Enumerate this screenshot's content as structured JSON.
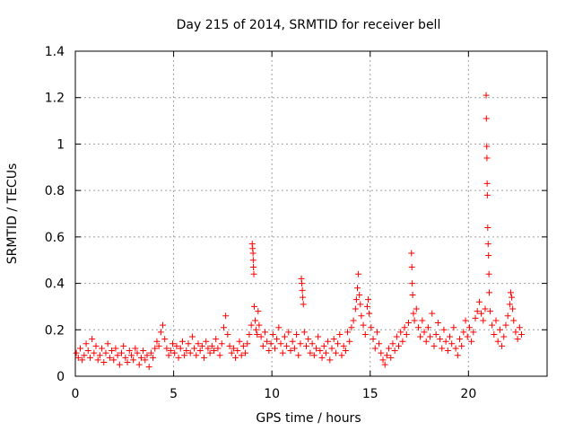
{
  "chart_data": {
    "type": "scatter",
    "title": "Day 215 of 2014, SRMTID for receiver bell",
    "xlabel": "GPS time / hours",
    "ylabel": "SRMTID / TECUs",
    "xlim": [
      0,
      24
    ],
    "ylim": [
      0,
      1.4
    ],
    "xticks": [
      0,
      5,
      10,
      15,
      20
    ],
    "xtick_labels": [
      "0",
      "5",
      "10",
      "15",
      "20"
    ],
    "yticks": [
      0,
      0.2,
      0.4,
      0.6,
      0.8,
      1.0,
      1.2,
      1.4
    ],
    "ytick_labels": [
      "0",
      "0.2",
      "0.4",
      "0.6",
      "0.8",
      "1",
      "1.2",
      "1.4"
    ],
    "grid": true,
    "marker": "+",
    "color": "#ff0000",
    "series": [
      {
        "name": "SRMTID",
        "points": [
          [
            0.05,
            0.1
          ],
          [
            0.15,
            0.08
          ],
          [
            0.25,
            0.12
          ],
          [
            0.35,
            0.07
          ],
          [
            0.45,
            0.09
          ],
          [
            0.55,
            0.14
          ],
          [
            0.65,
            0.11
          ],
          [
            0.75,
            0.08
          ],
          [
            0.85,
            0.16
          ],
          [
            0.95,
            0.1
          ],
          [
            1.05,
            0.13
          ],
          [
            1.15,
            0.07
          ],
          [
            1.25,
            0.09
          ],
          [
            1.35,
            0.12
          ],
          [
            1.45,
            0.06
          ],
          [
            1.55,
            0.1
          ],
          [
            1.65,
            0.14
          ],
          [
            1.75,
            0.08
          ],
          [
            1.85,
            0.11
          ],
          [
            1.95,
            0.07
          ],
          [
            2.05,
            0.12
          ],
          [
            2.15,
            0.09
          ],
          [
            2.25,
            0.05
          ],
          [
            2.35,
            0.1
          ],
          [
            2.45,
            0.13
          ],
          [
            2.55,
            0.08
          ],
          [
            2.65,
            0.06
          ],
          [
            2.75,
            0.11
          ],
          [
            2.85,
            0.09
          ],
          [
            2.95,
            0.07
          ],
          [
            3.05,
            0.12
          ],
          [
            3.15,
            0.1
          ],
          [
            3.25,
            0.05
          ],
          [
            3.35,
            0.08
          ],
          [
            3.45,
            0.11
          ],
          [
            3.55,
            0.07
          ],
          [
            3.65,
            0.09
          ],
          [
            3.75,
            0.04
          ],
          [
            3.85,
            0.1
          ],
          [
            3.95,
            0.08
          ],
          [
            4.05,
            0.12
          ],
          [
            4.15,
            0.15
          ],
          [
            4.25,
            0.13
          ],
          [
            4.35,
            0.19
          ],
          [
            4.45,
            0.22
          ],
          [
            4.55,
            0.16
          ],
          [
            4.65,
            0.12
          ],
          [
            4.75,
            0.09
          ],
          [
            4.85,
            0.11
          ],
          [
            4.95,
            0.14
          ],
          [
            5.05,
            0.1
          ],
          [
            5.15,
            0.13
          ],
          [
            5.25,
            0.08
          ],
          [
            5.35,
            0.12
          ],
          [
            5.45,
            0.15
          ],
          [
            5.55,
            0.09
          ],
          [
            5.65,
            0.11
          ],
          [
            5.75,
            0.14
          ],
          [
            5.85,
            0.1
          ],
          [
            5.95,
            0.17
          ],
          [
            6.05,
            0.12
          ],
          [
            6.15,
            0.09
          ],
          [
            6.25,
            0.14
          ],
          [
            6.35,
            0.11
          ],
          [
            6.45,
            0.13
          ],
          [
            6.55,
            0.08
          ],
          [
            6.65,
            0.15
          ],
          [
            6.75,
            0.12
          ],
          [
            6.85,
            0.1
          ],
          [
            6.95,
            0.13
          ],
          [
            7.05,
            0.11
          ],
          [
            7.15,
            0.16
          ],
          [
            7.25,
            0.12
          ],
          [
            7.35,
            0.09
          ],
          [
            7.45,
            0.14
          ],
          [
            7.55,
            0.21
          ],
          [
            7.65,
            0.26
          ],
          [
            7.75,
            0.18
          ],
          [
            7.85,
            0.13
          ],
          [
            7.95,
            0.1
          ],
          [
            8.05,
            0.12
          ],
          [
            8.15,
            0.08
          ],
          [
            8.25,
            0.11
          ],
          [
            8.35,
            0.15
          ],
          [
            8.45,
            0.09
          ],
          [
            8.55,
            0.13
          ],
          [
            8.65,
            0.1
          ],
          [
            8.75,
            0.14
          ],
          [
            8.85,
            0.18
          ],
          [
            8.95,
            0.22
          ],
          [
            9.0,
            0.57
          ],
          [
            9.02,
            0.55
          ],
          [
            9.04,
            0.53
          ],
          [
            9.05,
            0.5
          ],
          [
            9.06,
            0.47
          ],
          [
            9.08,
            0.44
          ],
          [
            9.1,
            0.3
          ],
          [
            9.15,
            0.24
          ],
          [
            9.2,
            0.2
          ],
          [
            9.25,
            0.18
          ],
          [
            9.3,
            0.28
          ],
          [
            9.35,
            0.22
          ],
          [
            9.45,
            0.17
          ],
          [
            9.55,
            0.13
          ],
          [
            9.65,
            0.19
          ],
          [
            9.75,
            0.15
          ],
          [
            9.85,
            0.11
          ],
          [
            9.95,
            0.14
          ],
          [
            10.05,
            0.18
          ],
          [
            10.15,
            0.12
          ],
          [
            10.25,
            0.16
          ],
          [
            10.35,
            0.21
          ],
          [
            10.45,
            0.14
          ],
          [
            10.55,
            0.1
          ],
          [
            10.65,
            0.17
          ],
          [
            10.75,
            0.13
          ],
          [
            10.85,
            0.19
          ],
          [
            10.95,
            0.11
          ],
          [
            11.05,
            0.15
          ],
          [
            11.15,
            0.12
          ],
          [
            11.25,
            0.18
          ],
          [
            11.35,
            0.09
          ],
          [
            11.45,
            0.14
          ],
          [
            11.5,
            0.42
          ],
          [
            11.52,
            0.4
          ],
          [
            11.55,
            0.37
          ],
          [
            11.57,
            0.34
          ],
          [
            11.6,
            0.31
          ],
          [
            11.65,
            0.19
          ],
          [
            11.75,
            0.13
          ],
          [
            11.85,
            0.16
          ],
          [
            11.95,
            0.1
          ],
          [
            12.05,
            0.14
          ],
          [
            12.15,
            0.09
          ],
          [
            12.25,
            0.12
          ],
          [
            12.35,
            0.17
          ],
          [
            12.45,
            0.11
          ],
          [
            12.55,
            0.08
          ],
          [
            12.65,
            0.13
          ],
          [
            12.75,
            0.1
          ],
          [
            12.85,
            0.15
          ],
          [
            12.95,
            0.07
          ],
          [
            13.05,
            0.12
          ],
          [
            13.15,
            0.16
          ],
          [
            13.25,
            0.1
          ],
          [
            13.35,
            0.14
          ],
          [
            13.45,
            0.18
          ],
          [
            13.55,
            0.09
          ],
          [
            13.65,
            0.13
          ],
          [
            13.75,
            0.11
          ],
          [
            13.85,
            0.19
          ],
          [
            13.95,
            0.15
          ],
          [
            14.05,
            0.21
          ],
          [
            14.15,
            0.24
          ],
          [
            14.25,
            0.29
          ],
          [
            14.3,
            0.33
          ],
          [
            14.35,
            0.38
          ],
          [
            14.4,
            0.44
          ],
          [
            14.45,
            0.35
          ],
          [
            14.5,
            0.31
          ],
          [
            14.55,
            0.26
          ],
          [
            14.65,
            0.22
          ],
          [
            14.75,
            0.18
          ],
          [
            14.85,
            0.3
          ],
          [
            14.9,
            0.33
          ],
          [
            14.95,
            0.27
          ],
          [
            15.05,
            0.21
          ],
          [
            15.15,
            0.16
          ],
          [
            15.25,
            0.12
          ],
          [
            15.35,
            0.19
          ],
          [
            15.45,
            0.14
          ],
          [
            15.55,
            0.1
          ],
          [
            15.65,
            0.07
          ],
          [
            15.75,
            0.05
          ],
          [
            15.85,
            0.09
          ],
          [
            15.95,
            0.12
          ],
          [
            16.05,
            0.08
          ],
          [
            16.15,
            0.14
          ],
          [
            16.25,
            0.11
          ],
          [
            16.35,
            0.17
          ],
          [
            16.45,
            0.13
          ],
          [
            16.55,
            0.19
          ],
          [
            16.65,
            0.15
          ],
          [
            16.75,
            0.21
          ],
          [
            16.85,
            0.18
          ],
          [
            16.95,
            0.23
          ],
          [
            17.1,
            0.53
          ],
          [
            17.12,
            0.47
          ],
          [
            17.14,
            0.4
          ],
          [
            17.16,
            0.35
          ],
          [
            17.2,
            0.27
          ],
          [
            17.25,
            0.24
          ],
          [
            17.35,
            0.29
          ],
          [
            17.45,
            0.21
          ],
          [
            17.55,
            0.17
          ],
          [
            17.65,
            0.24
          ],
          [
            17.75,
            0.19
          ],
          [
            17.85,
            0.15
          ],
          [
            17.95,
            0.21
          ],
          [
            18.05,
            0.17
          ],
          [
            18.15,
            0.27
          ],
          [
            18.25,
            0.13
          ],
          [
            18.35,
            0.18
          ],
          [
            18.45,
            0.23
          ],
          [
            18.55,
            0.16
          ],
          [
            18.65,
            0.12
          ],
          [
            18.75,
            0.2
          ],
          [
            18.85,
            0.15
          ],
          [
            18.95,
            0.11
          ],
          [
            19.05,
            0.17
          ],
          [
            19.15,
            0.14
          ],
          [
            19.25,
            0.21
          ],
          [
            19.35,
            0.12
          ],
          [
            19.45,
            0.09
          ],
          [
            19.55,
            0.16
          ],
          [
            19.65,
            0.13
          ],
          [
            19.75,
            0.19
          ],
          [
            19.85,
            0.24
          ],
          [
            19.95,
            0.17
          ],
          [
            20.05,
            0.21
          ],
          [
            20.15,
            0.15
          ],
          [
            20.25,
            0.19
          ],
          [
            20.35,
            0.25
          ],
          [
            20.45,
            0.28
          ],
          [
            20.55,
            0.32
          ],
          [
            20.65,
            0.27
          ],
          [
            20.75,
            0.24
          ],
          [
            20.85,
            0.29
          ],
          [
            20.9,
            1.21
          ],
          [
            20.91,
            1.11
          ],
          [
            20.93,
            0.99
          ],
          [
            20.94,
            0.94
          ],
          [
            20.95,
            0.83
          ],
          [
            20.96,
            0.78
          ],
          [
            20.98,
            0.64
          ],
          [
            21.0,
            0.57
          ],
          [
            21.02,
            0.52
          ],
          [
            21.04,
            0.44
          ],
          [
            21.06,
            0.36
          ],
          [
            21.1,
            0.28
          ],
          [
            21.2,
            0.22
          ],
          [
            21.3,
            0.18
          ],
          [
            21.4,
            0.24
          ],
          [
            21.5,
            0.15
          ],
          [
            21.6,
            0.2
          ],
          [
            21.7,
            0.13
          ],
          [
            21.8,
            0.17
          ],
          [
            21.9,
            0.22
          ],
          [
            22.0,
            0.26
          ],
          [
            22.1,
            0.31
          ],
          [
            22.15,
            0.36
          ],
          [
            22.2,
            0.34
          ],
          [
            22.25,
            0.29
          ],
          [
            22.3,
            0.24
          ],
          [
            22.4,
            0.19
          ],
          [
            22.5,
            0.16
          ],
          [
            22.6,
            0.21
          ],
          [
            22.7,
            0.18
          ]
        ]
      }
    ]
  }
}
